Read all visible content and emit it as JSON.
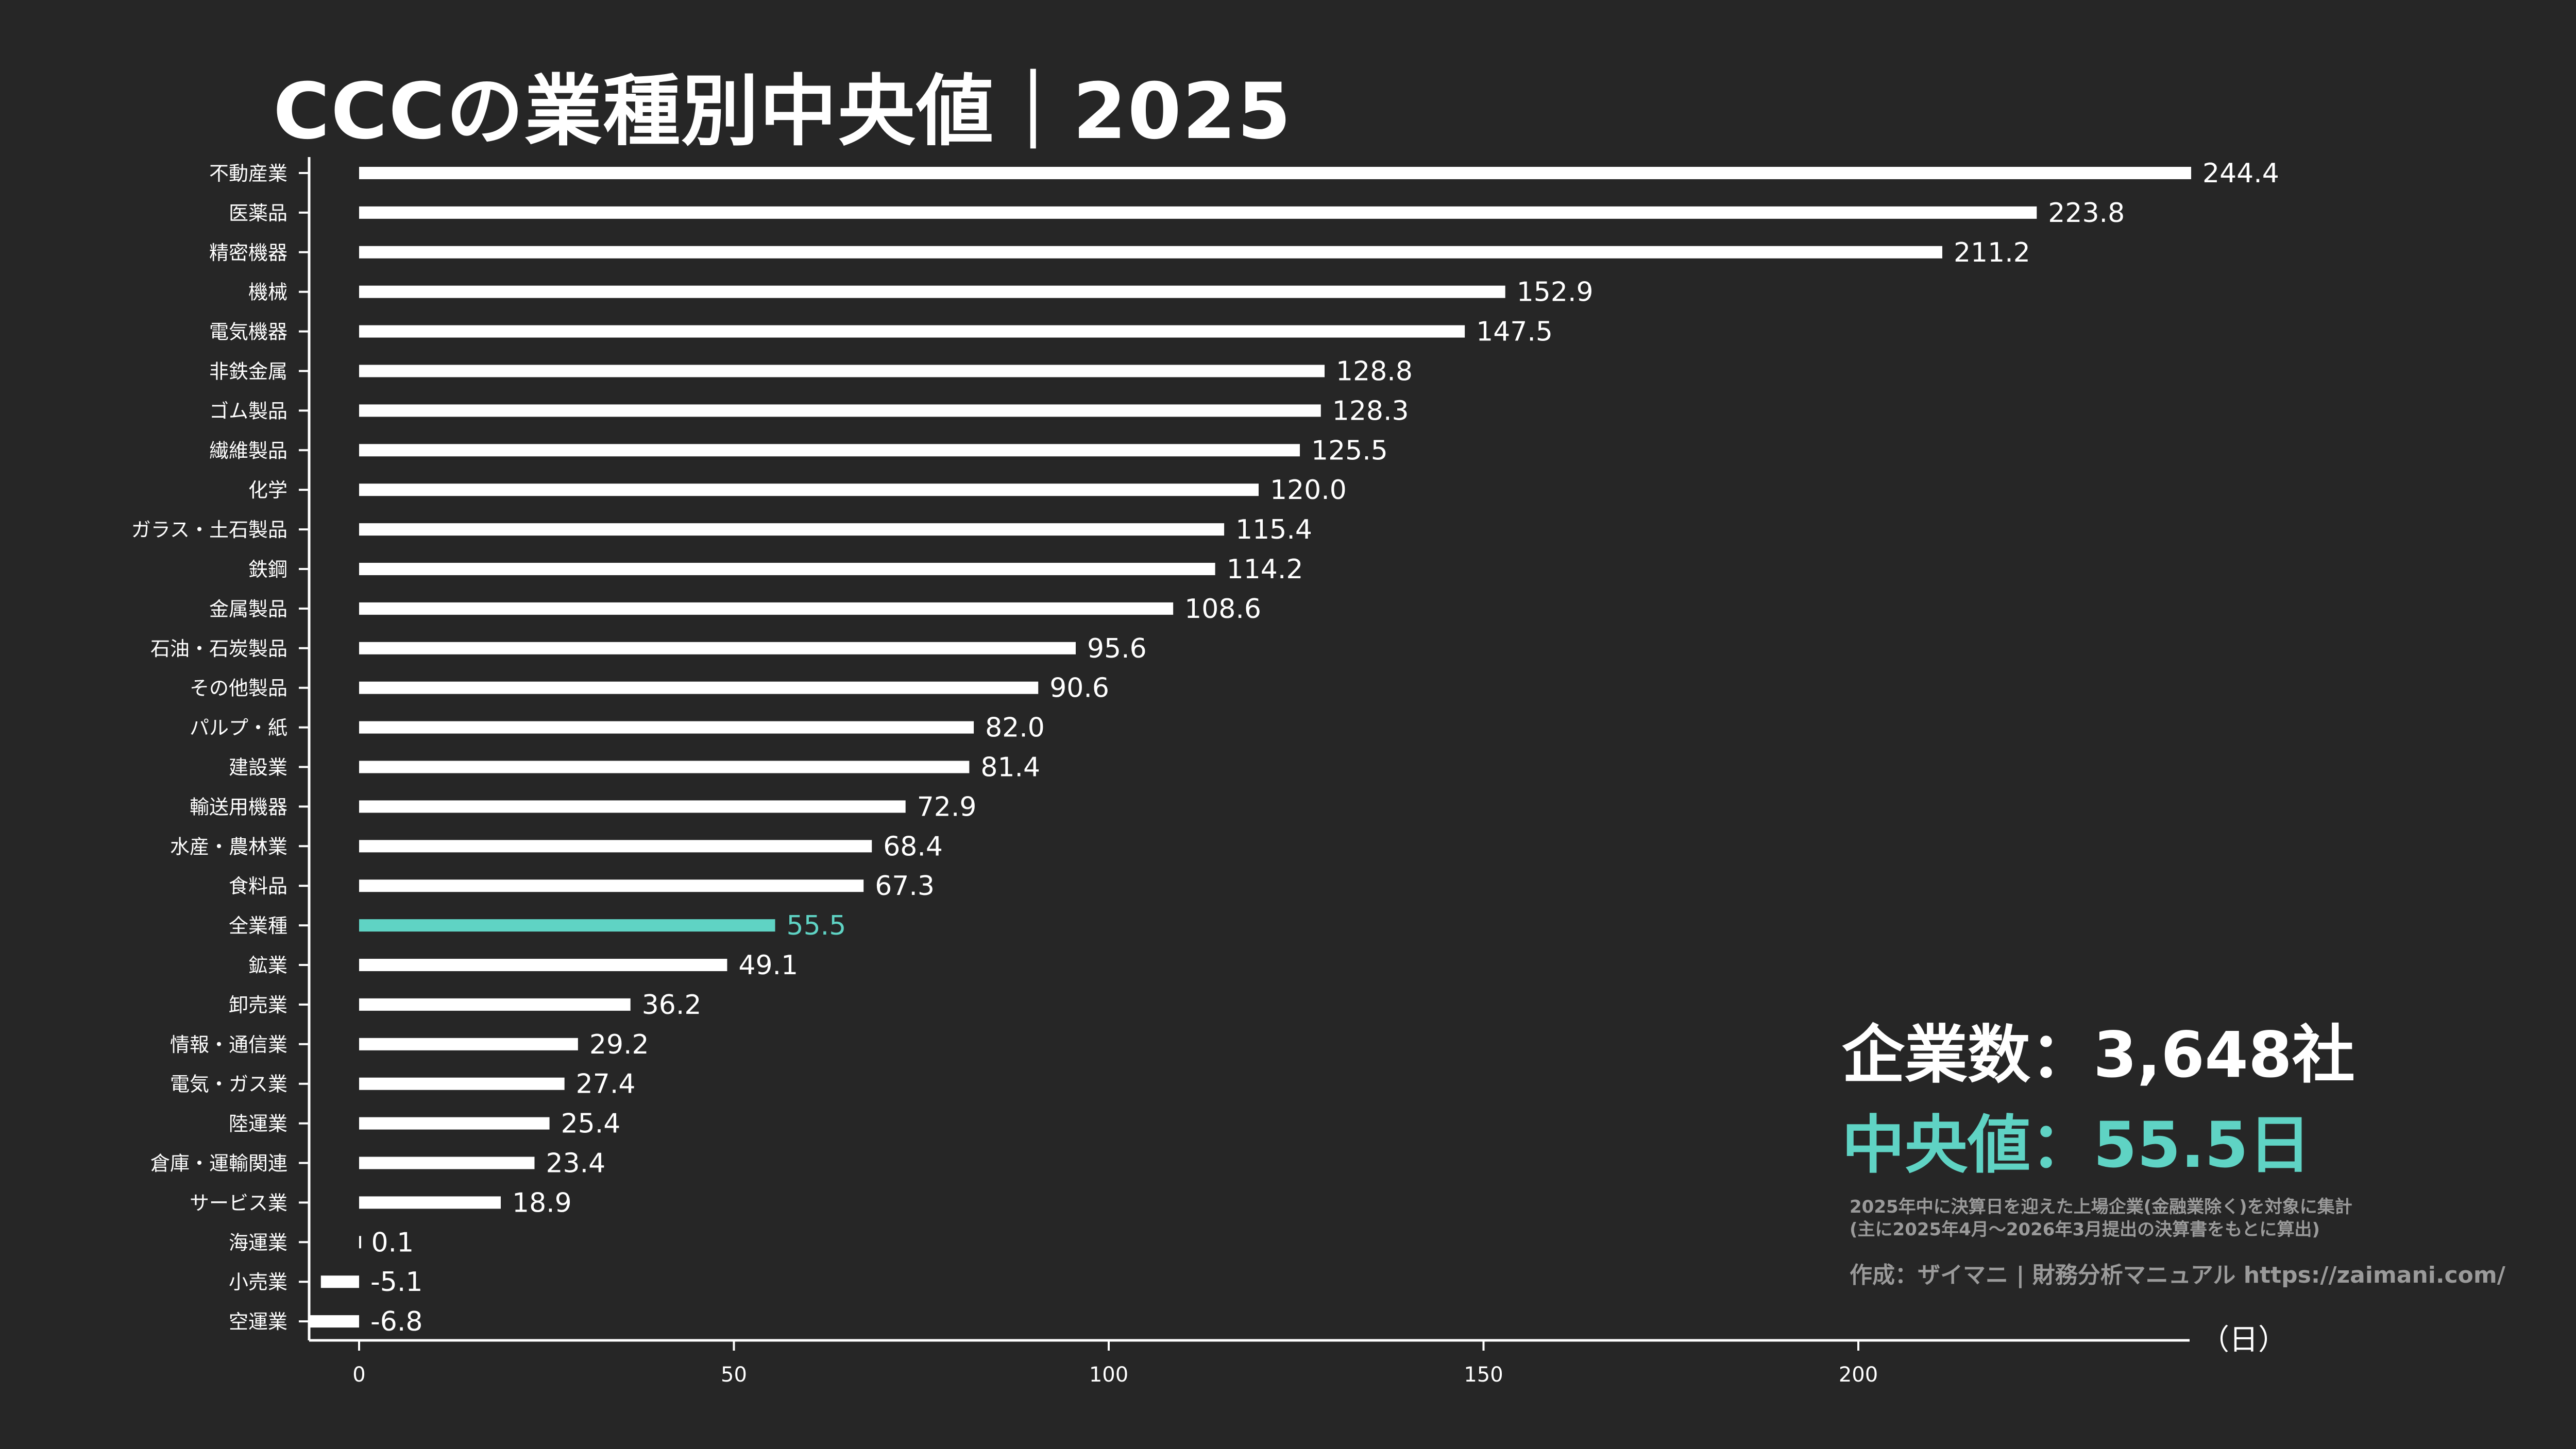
{
  "chart_data": {
    "type": "bar",
    "orientation": "horizontal",
    "title": "CCCの業種別中央値｜2025",
    "unit_label": "（日）",
    "xlim": [
      -7,
      245
    ],
    "xticks": [
      0,
      50,
      100,
      150,
      200
    ],
    "grid": false,
    "highlight_category": "全業種",
    "colors": {
      "bar": "#ffffff",
      "highlight": "#5fd3c4",
      "background": "#262626",
      "axis": "#ffffff"
    },
    "categories": [
      "不動産業",
      "医薬品",
      "精密機器",
      "機械",
      "電気機器",
      "非鉄金属",
      "ゴム製品",
      "繊維製品",
      "化学",
      "ガラス・土石製品",
      "鉄鋼",
      "金属製品",
      "石油・石炭製品",
      "その他製品",
      "パルプ・紙",
      "建設業",
      "輸送用機器",
      "水産・農林業",
      "食料品",
      "全業種",
      "鉱業",
      "卸売業",
      "情報・通信業",
      "電気・ガス業",
      "陸運業",
      "倉庫・運輸関連",
      "サービス業",
      "海運業",
      "小売業",
      "空運業"
    ],
    "values": [
      244.4,
      223.8,
      211.2,
      152.9,
      147.5,
      128.8,
      128.3,
      125.5,
      120.0,
      115.4,
      114.2,
      108.6,
      95.6,
      90.6,
      82.0,
      81.4,
      72.9,
      68.4,
      67.3,
      55.5,
      49.1,
      36.2,
      29.2,
      27.4,
      25.4,
      23.4,
      18.9,
      0.1,
      -5.1,
      -6.8
    ],
    "value_labels": [
      "244.4",
      "223.8",
      "211.2",
      "152.9",
      "147.5",
      "128.8",
      "128.3",
      "125.5",
      "120.0",
      "115.4",
      "114.2",
      "108.6",
      "95.6",
      "90.6",
      "82.0",
      "81.4",
      "72.9",
      "68.4",
      "67.3",
      "55.5",
      "49.1",
      "36.2",
      "29.2",
      "27.4",
      "25.4",
      "23.4",
      "18.9",
      "0.1",
      "-5.1",
      "-6.8"
    ]
  },
  "summary": {
    "count_text": "企業数：3,648社",
    "median_text": "中央値：55.5日",
    "note_line1": "2025年中に決算日を迎えた上場企業(金融業除く)を対象に集計",
    "note_line2": "(主に2025年4月〜2026年3月提出の決算書をもとに算出)",
    "credit": "作成：ザイマニ | 財務分析マニュアル https://zaimani.com/"
  }
}
